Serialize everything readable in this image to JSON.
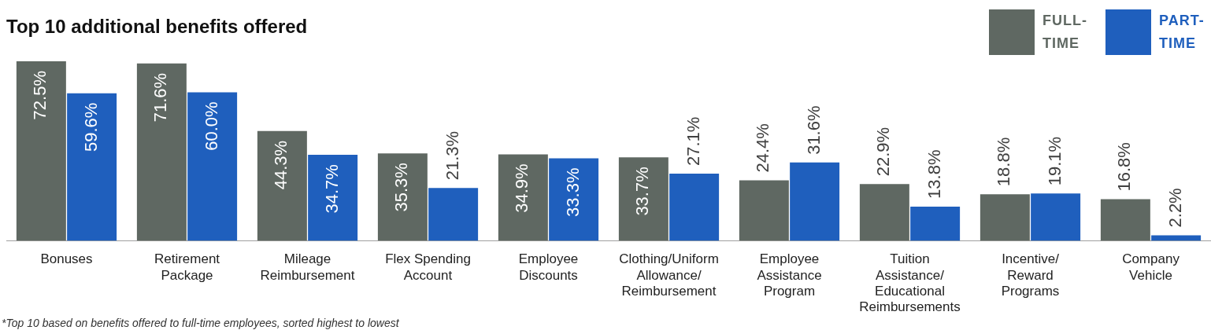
{
  "chart_data": {
    "type": "bar",
    "title": "Top 10 additional benefits offered",
    "categories": [
      "Bonuses",
      "Retirement\nPackage",
      "Mileage\nReimbursement",
      "Flex Spending\nAccount",
      "Employee\nDiscounts",
      "Clothing/Uniform\nAllowance/\nReimbursement",
      "Employee\nAssistance\nProgram",
      "Tuition\nAssistance/\nEducational\nReimbursements",
      "Incentive/\nReward\nPrograms",
      "Company\nVehicle"
    ],
    "series": [
      {
        "name": "FULL-TIME",
        "color": "#5f6862",
        "values": [
          72.5,
          71.6,
          44.3,
          35.3,
          34.9,
          33.7,
          24.4,
          22.9,
          18.8,
          16.8
        ],
        "value_labels": [
          "72.5%",
          "71.6%",
          "44.3%",
          "35.3%",
          "34.9%",
          "33.7%",
          "24.4%",
          "22.9%",
          "18.8%",
          "16.8%"
        ]
      },
      {
        "name": "PART-TIME",
        "color": "#1f5fbd",
        "values": [
          59.6,
          60.0,
          34.7,
          21.3,
          33.3,
          27.1,
          31.6,
          13.8,
          19.1,
          2.2
        ],
        "value_labels": [
          "59.6%",
          "60.0%",
          "34.7%",
          "21.3%",
          "33.3%",
          "27.1%",
          "31.6%",
          "13.8%",
          "19.1%",
          "2.2%"
        ]
      }
    ],
    "legend": "top right",
    "grid": false,
    "annotations": [
      "*Top 10 based on benefits offered to full-time employees, sorted highest to lowest"
    ]
  }
}
